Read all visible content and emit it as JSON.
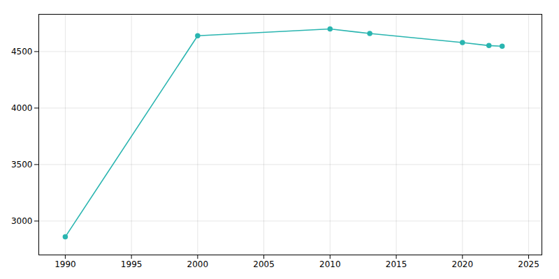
{
  "chart_data": {
    "type": "line",
    "x": [
      1990,
      2000,
      2010,
      2013,
      2020,
      2022,
      2023
    ],
    "values": [
      2860,
      4640,
      4700,
      4660,
      4580,
      4553,
      4548
    ],
    "color": "#2ab5b0",
    "marker": "circle",
    "xlim": [
      1988,
      2026
    ],
    "ylim": [
      2700,
      4830
    ],
    "xticks": [
      1990,
      1995,
      2000,
      2005,
      2010,
      2015,
      2020,
      2025
    ],
    "yticks": [
      3000,
      3500,
      4000,
      4500
    ],
    "grid": true
  }
}
